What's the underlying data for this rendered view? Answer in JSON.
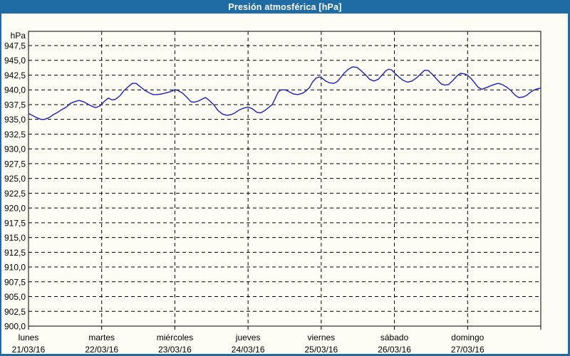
{
  "window": {
    "title": "Presión atmosférica [hPa]"
  },
  "colors": {
    "frame": "#1f6ba3",
    "title_text": "#ffffff",
    "plot_bg": "#fdfdf6",
    "grid": "#000000",
    "axis": "#000000",
    "line": "#2020b0",
    "label": "#000000"
  },
  "chart_data": {
    "type": "line",
    "title": "Presión atmosférica [hPa]",
    "unit_label": "hPa",
    "grid": "dashed",
    "legend": "none",
    "y_axis": {
      "min": 900,
      "max": 950,
      "tick_step": 2.5,
      "ticks": [
        {
          "v": 947.5,
          "label": "947,5"
        },
        {
          "v": 945.0,
          "label": "945,0"
        },
        {
          "v": 942.5,
          "label": "942,5"
        },
        {
          "v": 940.0,
          "label": "940,0"
        },
        {
          "v": 937.5,
          "label": "937,5"
        },
        {
          "v": 935.0,
          "label": "935,0"
        },
        {
          "v": 932.5,
          "label": "932,5"
        },
        {
          "v": 930.0,
          "label": "930,0"
        },
        {
          "v": 927.5,
          "label": "927,5"
        },
        {
          "v": 925.0,
          "label": "925,0"
        },
        {
          "v": 922.5,
          "label": "922,5"
        },
        {
          "v": 920.0,
          "label": "920,0"
        },
        {
          "v": 917.5,
          "label": "917,5"
        },
        {
          "v": 915.0,
          "label": "915,0"
        },
        {
          "v": 912.5,
          "label": "912,5"
        },
        {
          "v": 910.0,
          "label": "910,0"
        },
        {
          "v": 907.5,
          "label": "907,5"
        },
        {
          "v": 905.0,
          "label": "905,0"
        },
        {
          "v": 902.5,
          "label": "902,5"
        },
        {
          "v": 900.0,
          "label": "900,0"
        }
      ]
    },
    "x_axis": {
      "days": [
        {
          "name": "lunes",
          "date": "21/03/16"
        },
        {
          "name": "martes",
          "date": "22/03/16"
        },
        {
          "name": "miércoles",
          "date": "23/03/16"
        },
        {
          "name": "jueves",
          "date": "24/03/16"
        },
        {
          "name": "viernes",
          "date": "25/03/16"
        },
        {
          "name": "sábado",
          "date": "26/03/16"
        },
        {
          "name": "domingo",
          "date": "27/03/16"
        }
      ]
    },
    "series": [
      {
        "name": "Presión atmosférica",
        "points": [
          [
            0.0,
            936.0
          ],
          [
            0.05,
            935.7
          ],
          [
            0.11,
            935.3
          ],
          [
            0.17,
            935.0
          ],
          [
            0.22,
            935.0
          ],
          [
            0.28,
            935.3
          ],
          [
            0.34,
            935.8
          ],
          [
            0.4,
            936.2
          ],
          [
            0.46,
            936.7
          ],
          [
            0.52,
            937.1
          ],
          [
            0.57,
            937.7
          ],
          [
            0.63,
            938.0
          ],
          [
            0.69,
            938.2
          ],
          [
            0.75,
            938.0
          ],
          [
            0.81,
            937.6
          ],
          [
            0.87,
            937.2
          ],
          [
            0.92,
            937.0
          ],
          [
            0.98,
            937.3
          ],
          [
            1.04,
            938.1
          ],
          [
            1.09,
            938.6
          ],
          [
            1.14,
            938.3
          ],
          [
            1.19,
            938.4
          ],
          [
            1.25,
            939.0
          ],
          [
            1.3,
            939.8
          ],
          [
            1.36,
            940.5
          ],
          [
            1.42,
            941.1
          ],
          [
            1.47,
            941.1
          ],
          [
            1.53,
            940.5
          ],
          [
            1.59,
            939.9
          ],
          [
            1.65,
            939.5
          ],
          [
            1.7,
            939.2
          ],
          [
            1.76,
            939.2
          ],
          [
            1.82,
            939.3
          ],
          [
            1.88,
            939.5
          ],
          [
            1.94,
            939.7
          ],
          [
            2.0,
            940.0
          ],
          [
            2.04,
            939.9
          ],
          [
            2.1,
            939.5
          ],
          [
            2.16,
            938.8
          ],
          [
            2.22,
            938.0
          ],
          [
            2.26,
            937.9
          ],
          [
            2.32,
            938.1
          ],
          [
            2.38,
            938.5
          ],
          [
            2.42,
            938.7
          ],
          [
            2.47,
            938.2
          ],
          [
            2.53,
            937.5
          ],
          [
            2.59,
            936.5
          ],
          [
            2.65,
            935.9
          ],
          [
            2.71,
            935.7
          ],
          [
            2.77,
            935.8
          ],
          [
            2.82,
            936.1
          ],
          [
            2.88,
            936.6
          ],
          [
            2.94,
            936.9
          ],
          [
            3.0,
            937.1
          ],
          [
            3.06,
            936.8
          ],
          [
            3.12,
            936.2
          ],
          [
            3.17,
            936.1
          ],
          [
            3.23,
            936.5
          ],
          [
            3.28,
            937.0
          ],
          [
            3.33,
            937.5
          ],
          [
            3.37,
            938.5
          ],
          [
            3.41,
            939.6
          ],
          [
            3.45,
            940.0
          ],
          [
            3.51,
            940.0
          ],
          [
            3.56,
            939.7
          ],
          [
            3.62,
            939.3
          ],
          [
            3.68,
            939.2
          ],
          [
            3.74,
            939.4
          ],
          [
            3.79,
            939.8
          ],
          [
            3.84,
            940.4
          ],
          [
            3.88,
            941.3
          ],
          [
            3.93,
            942.0
          ],
          [
            3.97,
            942.2
          ],
          [
            4.01,
            942.0
          ],
          [
            4.06,
            941.5
          ],
          [
            4.11,
            941.2
          ],
          [
            4.17,
            941.1
          ],
          [
            4.22,
            941.4
          ],
          [
            4.26,
            942.0
          ],
          [
            4.31,
            942.8
          ],
          [
            4.37,
            943.5
          ],
          [
            4.43,
            943.9
          ],
          [
            4.49,
            943.8
          ],
          [
            4.55,
            943.2
          ],
          [
            4.61,
            942.5
          ],
          [
            4.66,
            941.8
          ],
          [
            4.72,
            941.5
          ],
          [
            4.78,
            941.8
          ],
          [
            4.84,
            942.6
          ],
          [
            4.88,
            943.2
          ],
          [
            4.92,
            943.5
          ],
          [
            4.96,
            943.4
          ],
          [
            5.0,
            942.9
          ],
          [
            5.06,
            942.2
          ],
          [
            5.12,
            941.6
          ],
          [
            5.18,
            941.3
          ],
          [
            5.24,
            941.5
          ],
          [
            5.3,
            942.0
          ],
          [
            5.36,
            942.7
          ],
          [
            5.41,
            943.3
          ],
          [
            5.46,
            943.3
          ],
          [
            5.52,
            942.6
          ],
          [
            5.58,
            941.8
          ],
          [
            5.64,
            941.0
          ],
          [
            5.69,
            940.8
          ],
          [
            5.74,
            940.9
          ],
          [
            5.8,
            941.6
          ],
          [
            5.85,
            942.3
          ],
          [
            5.9,
            942.8
          ],
          [
            5.96,
            942.7
          ],
          [
            6.0,
            942.5
          ],
          [
            6.05,
            941.9
          ],
          [
            6.09,
            941.3
          ],
          [
            6.14,
            940.5
          ],
          [
            6.19,
            940.1
          ],
          [
            6.24,
            940.3
          ],
          [
            6.3,
            940.6
          ],
          [
            6.36,
            940.9
          ],
          [
            6.42,
            941.1
          ],
          [
            6.47,
            940.9
          ],
          [
            6.53,
            940.5
          ],
          [
            6.59,
            939.9
          ],
          [
            6.65,
            939.1
          ],
          [
            6.7,
            938.7
          ],
          [
            6.76,
            938.8
          ],
          [
            6.81,
            939.1
          ],
          [
            6.87,
            939.7
          ],
          [
            6.93,
            940.1
          ],
          [
            7.0,
            940.3
          ]
        ]
      }
    ]
  }
}
